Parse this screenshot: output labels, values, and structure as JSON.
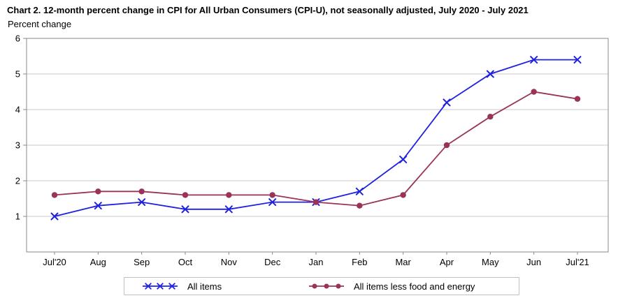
{
  "chart_data": {
    "type": "line",
    "title": "Chart 2. 12-month percent change in CPI for All Urban Consumers (CPI-U), not seasonally adjusted, July 2020 - July 2021",
    "ylabel": "Percent change",
    "categories": [
      "Jul'20",
      "Aug",
      "Sep",
      "Oct",
      "Nov",
      "Dec",
      "Jan",
      "Feb",
      "Mar",
      "Apr",
      "May",
      "Jun",
      "Jul'21"
    ],
    "series": [
      {
        "name": "All items",
        "marker": "x",
        "color": "#2020e0",
        "values": [
          1.0,
          1.3,
          1.4,
          1.2,
          1.2,
          1.4,
          1.4,
          1.7,
          2.6,
          4.2,
          5.0,
          5.4,
          5.4
        ]
      },
      {
        "name": "All items less food and energy",
        "marker": "circle",
        "color": "#993359",
        "values": [
          1.6,
          1.7,
          1.7,
          1.6,
          1.6,
          1.6,
          1.4,
          1.3,
          1.6,
          3.0,
          3.8,
          4.5,
          4.3
        ]
      }
    ],
    "ylim": [
      0,
      6
    ],
    "yticks": [
      1,
      2,
      3,
      4,
      5,
      6
    ],
    "grid": "horizontal",
    "legend_position": "bottom",
    "colors": {
      "axis": "#8a8a8a",
      "grid": "#c9c9c9",
      "text": "#000000",
      "legend_border": "#c2c2c2",
      "background": "#ffffff"
    }
  }
}
